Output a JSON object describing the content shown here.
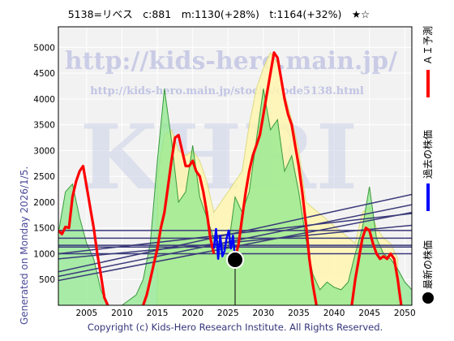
{
  "header": {
    "title": "5138=リベス　c:881　m:1130(+28%)　t:1164(+32%)　★☆"
  },
  "footer": {
    "generated": "Generated on Monday 2026/1/5.",
    "copyright": "Copyright (c) Kids-Hero Research Institute. All Rights Reserved."
  },
  "watermark": {
    "url_main": "http://kids-hero.main.jp/",
    "url_sub": "http://kids-hero.main.jp/stocks/code5138.html",
    "brand": "KHRI"
  },
  "legend": [
    {
      "label": "ＡＩ予測",
      "color": "#ff0000"
    },
    {
      "label": "過去の株価",
      "color": "#0000ff"
    },
    {
      "label": "最新の株価",
      "color": "#000000"
    }
  ],
  "colors": {
    "plot_bg": "#f2f2f2",
    "grid": "#ffffff",
    "band_fill": "#fff6b0",
    "band_stroke": "#d8d870",
    "area_fill": "#8ee88e",
    "area_stroke": "#3a9a3a",
    "trend_line": "#3a3a7a",
    "prediction": "#ff0000",
    "past_price": "#0000ff",
    "latest_price": "#000000"
  },
  "chart_data": {
    "type": "line",
    "title": "5138=リベス　c:881　m:1130(+28%)　t:1164(+32%)　★☆",
    "xlim": [
      2001,
      2051
    ],
    "ylim": [
      0,
      5400
    ],
    "x_ticks": [
      2005,
      2010,
      2015,
      2020,
      2025,
      2030,
      2035,
      2040,
      2045,
      2050
    ],
    "y_ticks": [
      500,
      1000,
      1500,
      2000,
      2500,
      3000,
      3500,
      4000,
      4500,
      5000
    ],
    "grid": true,
    "latest_price": {
      "x": 2026.0,
      "y": 881
    },
    "horizontal_levels": [
      1000,
      1130,
      1164,
      1300,
      1450
    ],
    "trend_lines": [
      {
        "x": [
          2001,
          2051
        ],
        "y": [
          480,
          1800
        ]
      },
      {
        "x": [
          2001,
          2051
        ],
        "y": [
          560,
          1950
        ]
      },
      {
        "x": [
          2001,
          2051
        ],
        "y": [
          650,
          2150
        ]
      },
      {
        "x": [
          2001,
          2051
        ],
        "y": [
          900,
          1550
        ]
      },
      {
        "x": [
          2001,
          2051
        ],
        "y": [
          1000,
          1780
        ]
      }
    ],
    "series": [
      {
        "name": "ＡＩ予測",
        "segments": [
          {
            "x": [
              2001.0,
              2001.5,
              2002.0,
              2002.5,
              2003.0,
              2003.5,
              2004.0,
              2004.5,
              2005.0,
              2005.5,
              2006.0,
              2006.5,
              2007.0,
              2007.5,
              2008.0
            ],
            "y": [
              1450,
              1380,
              1520,
              1500,
              2100,
              2400,
              2600,
              2700,
              2300,
              1900,
              1500,
              1000,
              600,
              150,
              0
            ]
          },
          {
            "x": [
              2013.0,
              2013.5,
              2014.0,
              2014.5,
              2015.0,
              2015.5,
              2016.0,
              2016.5,
              2017.0,
              2017.5,
              2018.0,
              2018.5,
              2019.0,
              2019.5,
              2020.0,
              2020.5,
              2021.0,
              2021.5,
              2022.0,
              2022.5,
              2023.0
            ],
            "y": [
              0,
              200,
              500,
              800,
              1100,
              1500,
              1800,
              2300,
              2800,
              3250,
              3300,
              3000,
              2700,
              2700,
              2800,
              2600,
              2500,
              2200,
              1800,
              1300,
              1000
            ]
          },
          {
            "x": [
              2026.0,
              2026.5,
              2027.0,
              2027.5,
              2028.0,
              2028.5,
              2029.0,
              2029.5,
              2030.0,
              2030.5,
              2031.0,
              2031.5,
              2032.0,
              2032.5,
              2033.0,
              2033.5,
              2034.0,
              2034.5,
              2035.0,
              2035.5,
              2036.0,
              2036.5,
              2037.0,
              2037.5
            ],
            "y": [
              900,
              1200,
              1700,
              2200,
              2600,
              2900,
              3100,
              3300,
              3700,
              4100,
              4500,
              4900,
              4800,
              4400,
              4000,
              3700,
              3500,
              3100,
              2700,
              2200,
              1600,
              900,
              400,
              0
            ]
          },
          {
            "x": [
              2042.5,
              2043.0,
              2043.5,
              2044.0,
              2044.5,
              2045.0,
              2045.5,
              2046.0,
              2046.5,
              2047.0,
              2047.5,
              2048.0,
              2048.5,
              2049.0,
              2049.5
            ],
            "y": [
              0,
              500,
              900,
              1300,
              1500,
              1450,
              1200,
              1000,
              900,
              950,
              900,
              1000,
              900,
              500,
              0
            ]
          }
        ]
      },
      {
        "name": "過去の株価",
        "x": [
          2023.0,
          2023.3,
          2023.6,
          2023.9,
          2024.2,
          2024.5,
          2024.8,
          2025.1,
          2025.4,
          2025.7,
          2026.0
        ],
        "y": [
          1100,
          1480,
          900,
          1350,
          950,
          1050,
          1300,
          1450,
          1100,
          1350,
          881
        ]
      }
    ],
    "background_area": {
      "x": [
        2001,
        2002,
        2003,
        2004,
        2005,
        2006,
        2007,
        2008,
        2009,
        2010,
        2011,
        2012,
        2013,
        2014,
        2015,
        2016,
        2017,
        2018,
        2019,
        2020,
        2021,
        2022,
        2023,
        2024,
        2025,
        2026,
        2027,
        2028,
        2029,
        2030,
        2031,
        2032,
        2033,
        2034,
        2035,
        2036,
        2037,
        2038,
        2039,
        2040,
        2041,
        2042,
        2043,
        2044,
        2045,
        2046,
        2047,
        2048,
        2049,
        2050,
        2051
      ],
      "y": [
        1400,
        2200,
        2350,
        1700,
        1200,
        900,
        300,
        0,
        0,
        0,
        100,
        200,
        500,
        1200,
        2800,
        4200,
        3200,
        2000,
        2200,
        3100,
        2100,
        1700,
        1300,
        1200,
        1100,
        2100,
        1800,
        2200,
        3200,
        4200,
        3400,
        3600,
        2600,
        2900,
        2200,
        1300,
        600,
        300,
        450,
        350,
        300,
        450,
        1000,
        1500,
        2300,
        1300,
        1000,
        900,
        700,
        450,
        300
      ]
    },
    "forecast_band": {
      "x": [
        2015,
        2016,
        2017,
        2018,
        2019,
        2020,
        2021,
        2022,
        2023,
        2027,
        2028,
        2029,
        2030,
        2031,
        2032,
        2033,
        2034,
        2035,
        2036,
        2043,
        2044,
        2045,
        2046,
        2047,
        2048,
        2049
      ],
      "y_upper": [
        2500,
        3300,
        3400,
        3000,
        2900,
        3000,
        2800,
        2400,
        1800,
        2600,
        3500,
        4200,
        4600,
        4900,
        4700,
        4100,
        3600,
        3000,
        2000,
        1200,
        1800,
        1900,
        1500,
        1300,
        1200,
        900
      ]
    }
  }
}
